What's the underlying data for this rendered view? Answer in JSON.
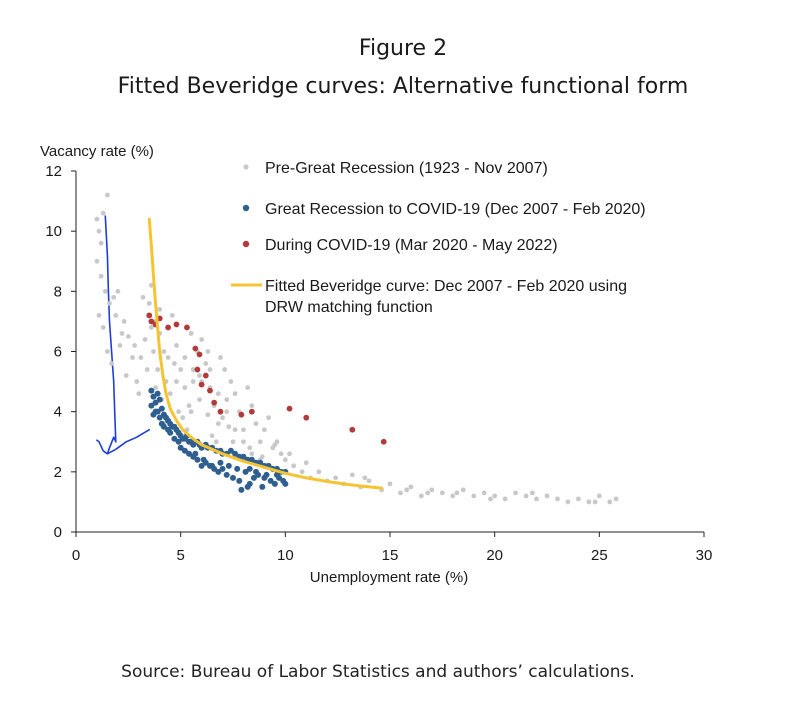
{
  "header": {
    "figure_label": "Figure 2",
    "title": "Fitted Beveridge curves: Alternative functional form"
  },
  "footer": {
    "source": "Source: Bureau of Labor Statistics and authors’ calculations."
  },
  "chart_data": {
    "type": "scatter",
    "ylabel": "Vacancy rate (%)",
    "xlabel": "Unemployment rate (%)",
    "xlim": [
      0,
      30
    ],
    "ylim": [
      0,
      12
    ],
    "xticks": [
      "0",
      "5",
      "10",
      "15",
      "20",
      "25",
      "30"
    ],
    "yticks": [
      "0",
      "2",
      "4",
      "6",
      "8",
      "10",
      "12"
    ],
    "grid": false,
    "legend_position": "top-right",
    "colors": {
      "pre": "#c8c8c8",
      "gr": "#2f5f8f",
      "covid": "#b23a3a",
      "fit": "#f5c430",
      "annotation": "#1f3ed6"
    },
    "series": [
      {
        "name": "Pre-Great Recession (1923 - Nov 2007)",
        "kind": "scatter",
        "points": [
          [
            1.0,
            10.4
          ],
          [
            1.1,
            10.0
          ],
          [
            1.2,
            9.6
          ],
          [
            1.0,
            9.0
          ],
          [
            1.3,
            10.6
          ],
          [
            1.5,
            11.2
          ],
          [
            1.2,
            8.5
          ],
          [
            1.4,
            8.0
          ],
          [
            1.8,
            7.8
          ],
          [
            2.0,
            8.0
          ],
          [
            1.1,
            7.2
          ],
          [
            1.3,
            6.8
          ],
          [
            1.5,
            6.0
          ],
          [
            1.7,
            5.6
          ],
          [
            2.1,
            6.2
          ],
          [
            2.3,
            7.0
          ],
          [
            2.5,
            6.5
          ],
          [
            2.7,
            5.8
          ],
          [
            2.4,
            5.2
          ],
          [
            2.9,
            5.0
          ],
          [
            3.1,
            5.8
          ],
          [
            3.3,
            6.4
          ],
          [
            3.0,
            4.6
          ],
          [
            3.5,
            7.6
          ],
          [
            3.6,
            8.2
          ],
          [
            3.8,
            7.0
          ],
          [
            4.0,
            6.6
          ],
          [
            4.2,
            6.0
          ],
          [
            3.9,
            5.4
          ],
          [
            4.3,
            5.0
          ],
          [
            4.5,
            4.6
          ],
          [
            4.7,
            5.6
          ],
          [
            4.4,
            6.8
          ],
          [
            4.8,
            6.2
          ],
          [
            5.0,
            5.4
          ],
          [
            5.2,
            4.8
          ],
          [
            5.4,
            4.2
          ],
          [
            5.1,
            3.8
          ],
          [
            5.6,
            5.0
          ],
          [
            5.8,
            6.0
          ],
          [
            6.0,
            6.4
          ],
          [
            6.2,
            5.6
          ],
          [
            6.4,
            4.8
          ],
          [
            6.6,
            4.2
          ],
          [
            6.8,
            3.6
          ],
          [
            5.5,
            6.6
          ],
          [
            4.6,
            7.2
          ],
          [
            3.7,
            6.0
          ],
          [
            4.1,
            4.4
          ],
          [
            4.9,
            4.0
          ],
          [
            5.3,
            3.4
          ],
          [
            5.7,
            3.0
          ],
          [
            6.1,
            2.8
          ],
          [
            6.5,
            3.2
          ],
          [
            7.0,
            3.8
          ],
          [
            7.2,
            4.4
          ],
          [
            7.4,
            5.0
          ],
          [
            7.6,
            4.6
          ],
          [
            7.8,
            4.0
          ],
          [
            8.0,
            3.4
          ],
          [
            7.1,
            5.4
          ],
          [
            6.9,
            5.8
          ],
          [
            6.3,
            6.0
          ],
          [
            5.9,
            5.2
          ],
          [
            8.2,
            4.8
          ],
          [
            8.4,
            4.2
          ],
          [
            8.6,
            3.6
          ],
          [
            8.8,
            3.0
          ],
          [
            9.0,
            3.4
          ],
          [
            9.2,
            3.8
          ],
          [
            9.4,
            2.8
          ],
          [
            9.6,
            3.0
          ],
          [
            9.8,
            2.6
          ],
          [
            10.0,
            2.4
          ],
          [
            10.4,
            2.2
          ],
          [
            10.8,
            2.0
          ],
          [
            11.2,
            1.8
          ],
          [
            11.6,
            2.0
          ],
          [
            12.0,
            1.7
          ],
          [
            12.4,
            1.8
          ],
          [
            12.8,
            1.6
          ],
          [
            13.2,
            1.9
          ],
          [
            13.6,
            1.5
          ],
          [
            14.0,
            1.7
          ],
          [
            14.6,
            1.4
          ],
          [
            15.0,
            1.6
          ],
          [
            15.5,
            1.3
          ],
          [
            16.0,
            1.5
          ],
          [
            16.5,
            1.2
          ],
          [
            17.0,
            1.4
          ],
          [
            17.5,
            1.3
          ],
          [
            18.0,
            1.2
          ],
          [
            18.5,
            1.4
          ],
          [
            19.0,
            1.2
          ],
          [
            19.5,
            1.3
          ],
          [
            20.0,
            1.2
          ],
          [
            20.5,
            1.1
          ],
          [
            21.0,
            1.3
          ],
          [
            21.5,
            1.2
          ],
          [
            22.0,
            1.1
          ],
          [
            22.5,
            1.2
          ],
          [
            23.0,
            1.1
          ],
          [
            23.5,
            1.0
          ],
          [
            24.0,
            1.1
          ],
          [
            24.5,
            1.0
          ],
          [
            25.0,
            1.2
          ],
          [
            25.5,
            1.0
          ],
          [
            25.8,
            1.1
          ],
          [
            24.8,
            1.0
          ],
          [
            21.8,
            1.3
          ],
          [
            19.8,
            1.1
          ],
          [
            18.2,
            1.3
          ],
          [
            16.8,
            1.3
          ],
          [
            15.8,
            1.4
          ],
          [
            13.8,
            1.8
          ],
          [
            11.0,
            2.3
          ],
          [
            10.2,
            2.6
          ],
          [
            9.5,
            2.9
          ],
          [
            8.9,
            2.5
          ],
          [
            8.3,
            2.8
          ],
          [
            7.5,
            3.0
          ],
          [
            7.3,
            3.5
          ],
          [
            6.7,
            3.0
          ],
          [
            6.3,
            3.9
          ],
          [
            5.9,
            4.4
          ],
          [
            5.5,
            4.0
          ],
          [
            4.2,
            3.6
          ],
          [
            3.8,
            4.8
          ],
          [
            3.4,
            5.4
          ],
          [
            2.8,
            6.2
          ],
          [
            2.2,
            6.6
          ],
          [
            1.9,
            7.2
          ],
          [
            1.6,
            7.6
          ],
          [
            3.2,
            7.8
          ],
          [
            3.6,
            6.8
          ],
          [
            4.0,
            7.4
          ],
          [
            4.4,
            5.8
          ],
          [
            4.8,
            5.0
          ],
          [
            5.2,
            5.8
          ],
          [
            5.6,
            5.4
          ],
          [
            6.0,
            5.0
          ],
          [
            6.4,
            5.4
          ],
          [
            6.8,
            4.6
          ],
          [
            7.2,
            4.0
          ],
          [
            7.6,
            3.4
          ],
          [
            8.0,
            3.0
          ],
          [
            8.4,
            2.6
          ],
          [
            8.8,
            2.4
          ],
          [
            9.2,
            2.2
          ],
          [
            9.6,
            2.0
          ]
        ]
      },
      {
        "name": "Great Recession to COVID-19 (Dec 2007 - Feb 2020)",
        "kind": "scatter",
        "points": [
          [
            3.6,
            4.7
          ],
          [
            3.7,
            4.5
          ],
          [
            3.8,
            4.3
          ],
          [
            3.6,
            4.2
          ],
          [
            3.9,
            4.6
          ],
          [
            4.0,
            4.4
          ],
          [
            3.8,
            4.0
          ],
          [
            4.1,
            4.1
          ],
          [
            3.7,
            3.9
          ],
          [
            4.2,
            3.9
          ],
          [
            4.3,
            3.8
          ],
          [
            4.4,
            3.7
          ],
          [
            4.5,
            3.6
          ],
          [
            4.6,
            3.5
          ],
          [
            4.7,
            3.5
          ],
          [
            4.8,
            3.4
          ],
          [
            4.9,
            3.3
          ],
          [
            5.0,
            3.2
          ],
          [
            5.1,
            3.1
          ],
          [
            5.2,
            3.1
          ],
          [
            5.3,
            3.2
          ],
          [
            5.4,
            3.0
          ],
          [
            5.5,
            3.0
          ],
          [
            5.6,
            2.9
          ],
          [
            5.8,
            3.0
          ],
          [
            5.9,
            2.9
          ],
          [
            6.0,
            2.8
          ],
          [
            6.2,
            2.9
          ],
          [
            6.3,
            2.8
          ],
          [
            6.5,
            2.8
          ],
          [
            6.7,
            2.7
          ],
          [
            6.9,
            2.7
          ],
          [
            7.0,
            2.6
          ],
          [
            7.2,
            2.6
          ],
          [
            7.4,
            2.7
          ],
          [
            7.6,
            2.6
          ],
          [
            7.8,
            2.5
          ],
          [
            8.0,
            2.5
          ],
          [
            8.2,
            2.4
          ],
          [
            8.4,
            2.4
          ],
          [
            8.6,
            2.3
          ],
          [
            8.8,
            2.3
          ],
          [
            9.0,
            2.2
          ],
          [
            9.2,
            2.2
          ],
          [
            9.4,
            2.1
          ],
          [
            9.6,
            2.1
          ],
          [
            9.8,
            2.0
          ],
          [
            10.0,
            2.0
          ],
          [
            9.7,
            1.8
          ],
          [
            9.9,
            1.7
          ],
          [
            10.0,
            1.6
          ],
          [
            9.5,
            1.6
          ],
          [
            9.3,
            1.7
          ],
          [
            9.0,
            1.8
          ],
          [
            8.7,
            1.9
          ],
          [
            8.5,
            1.8
          ],
          [
            8.3,
            1.6
          ],
          [
            8.9,
            1.5
          ],
          [
            7.8,
            1.7
          ],
          [
            7.5,
            1.8
          ],
          [
            7.2,
            1.9
          ],
          [
            7.0,
            2.1
          ],
          [
            6.8,
            2.0
          ],
          [
            6.6,
            2.1
          ],
          [
            6.4,
            2.2
          ],
          [
            6.2,
            2.3
          ],
          [
            6.0,
            2.2
          ],
          [
            5.8,
            2.4
          ],
          [
            5.6,
            2.5
          ],
          [
            5.4,
            2.6
          ],
          [
            5.2,
            2.7
          ],
          [
            5.0,
            2.8
          ],
          [
            4.9,
            3.0
          ],
          [
            4.7,
            3.1
          ],
          [
            4.5,
            3.3
          ],
          [
            4.4,
            3.4
          ],
          [
            4.2,
            3.5
          ],
          [
            4.1,
            3.6
          ],
          [
            4.0,
            3.8
          ],
          [
            3.9,
            4.0
          ],
          [
            5.7,
            2.6
          ],
          [
            6.1,
            2.4
          ],
          [
            6.5,
            2.2
          ],
          [
            6.9,
            2.3
          ],
          [
            7.3,
            2.2
          ],
          [
            7.7,
            2.1
          ],
          [
            8.1,
            2.0
          ],
          [
            8.3,
            2.1
          ],
          [
            8.6,
            2.0
          ],
          [
            9.1,
            1.9
          ],
          [
            7.9,
            1.4
          ],
          [
            8.2,
            1.5
          ],
          [
            9.6,
            1.9
          ]
        ]
      },
      {
        "name": "During COVID-19 (Mar 2020 - May 2022)",
        "kind": "scatter",
        "points": [
          [
            3.5,
            7.2
          ],
          [
            3.6,
            7.0
          ],
          [
            3.8,
            6.9
          ],
          [
            4.0,
            7.1
          ],
          [
            4.4,
            6.8
          ],
          [
            4.8,
            6.9
          ],
          [
            5.3,
            6.8
          ],
          [
            5.7,
            6.1
          ],
          [
            5.9,
            5.9
          ],
          [
            5.8,
            5.4
          ],
          [
            6.0,
            4.9
          ],
          [
            6.2,
            5.2
          ],
          [
            6.4,
            4.7
          ],
          [
            6.6,
            4.3
          ],
          [
            6.9,
            4.0
          ],
          [
            7.9,
            3.9
          ],
          [
            8.4,
            4.0
          ],
          [
            10.2,
            4.1
          ],
          [
            11.0,
            3.8
          ],
          [
            13.2,
            3.4
          ],
          [
            14.7,
            3.0
          ]
        ]
      },
      {
        "name": "Fitted Beveridge curve: Dec 2007 - Feb 2020 using DRW matching function",
        "kind": "line",
        "points": [
          [
            3.5,
            10.4
          ],
          [
            3.6,
            9.5
          ],
          [
            3.7,
            8.5
          ],
          [
            3.8,
            7.6
          ],
          [
            3.9,
            6.8
          ],
          [
            4.0,
            6.0
          ],
          [
            4.15,
            5.2
          ],
          [
            4.3,
            4.6
          ],
          [
            4.5,
            4.1
          ],
          [
            4.8,
            3.7
          ],
          [
            5.1,
            3.4
          ],
          [
            5.5,
            3.15
          ],
          [
            6.0,
            2.9
          ],
          [
            6.5,
            2.75
          ],
          [
            7.0,
            2.6
          ],
          [
            8.0,
            2.35
          ],
          [
            9.0,
            2.15
          ],
          [
            10.0,
            1.95
          ],
          [
            11.0,
            1.8
          ],
          [
            12.0,
            1.68
          ],
          [
            13.0,
            1.58
          ],
          [
            14.0,
            1.5
          ],
          [
            14.6,
            1.46
          ]
        ]
      }
    ],
    "annotation": {
      "kind": "hand-drawn",
      "points": [
        [
          1.4,
          10.5
        ],
        [
          1.5,
          9.2
        ],
        [
          1.55,
          8.0
        ],
        [
          1.6,
          7.0
        ],
        [
          1.7,
          6.0
        ],
        [
          1.8,
          5.0
        ],
        [
          1.85,
          4.0
        ],
        [
          1.9,
          3.0
        ],
        [
          1.8,
          3.15
        ],
        [
          1.6,
          2.8
        ],
        [
          1.5,
          2.6
        ],
        [
          1.3,
          2.7
        ],
        [
          1.1,
          3.0
        ],
        [
          1.0,
          3.05
        ],
        [
          1.5,
          2.6
        ],
        [
          1.9,
          2.75
        ],
        [
          2.4,
          3.0
        ],
        [
          2.9,
          3.15
        ],
        [
          3.5,
          3.4
        ]
      ]
    }
  }
}
